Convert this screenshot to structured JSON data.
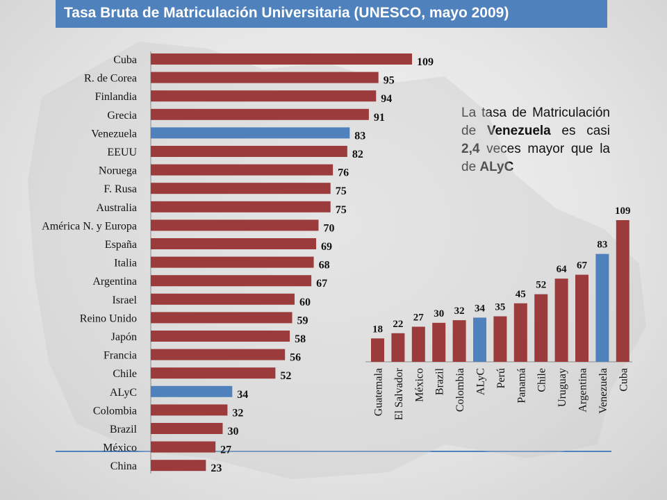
{
  "title": "Tasa Bruta de Matriculación Universitaria (UNESCO, mayo 2009)",
  "note": {
    "part1": "La tasa de Matriculación de ",
    "bold1": "Venezuela",
    "part2": " es casi ",
    "bold2": "2,4",
    "part3": " veces mayor que la de ",
    "bold3": "ALyC"
  },
  "colors": {
    "default": "#9b3b3b",
    "highlight": "#4f81bd",
    "title_bg": "#4f81bd"
  },
  "chart_data": [
    {
      "type": "bar",
      "orientation": "horizontal",
      "categories": [
        "Cuba",
        "R. de Corea",
        "Finlandia",
        "Grecia",
        "Venezuela",
        "EEUU",
        "Noruega",
        "F. Rusa",
        "Australia",
        "América N. y Europa",
        "España",
        "Italia",
        "Argentina",
        "Israel",
        "Reino Unido",
        "Japón",
        "Francia",
        "Chile",
        "ALyC",
        "Colombia",
        "Brazil",
        "México",
        "China"
      ],
      "values": [
        109,
        95,
        94,
        91,
        83,
        82,
        76,
        75,
        75,
        70,
        69,
        68,
        67,
        60,
        59,
        58,
        56,
        52,
        34,
        32,
        30,
        27,
        23
      ],
      "highlight": [
        "Venezuela",
        "ALyC"
      ]
    },
    {
      "type": "bar",
      "orientation": "vertical",
      "categories": [
        "Guatemala",
        "El Salvador",
        "México",
        "Brazil",
        "Colombia",
        "ALyC",
        "Perú",
        "Panamá",
        "Chile",
        "Uruguay",
        "Argentina",
        "Venezuela",
        "Cuba"
      ],
      "values": [
        18,
        22,
        27,
        30,
        32,
        34,
        35,
        45,
        52,
        64,
        67,
        83,
        109
      ],
      "highlight": [
        "ALyC",
        "Venezuela"
      ]
    }
  ]
}
